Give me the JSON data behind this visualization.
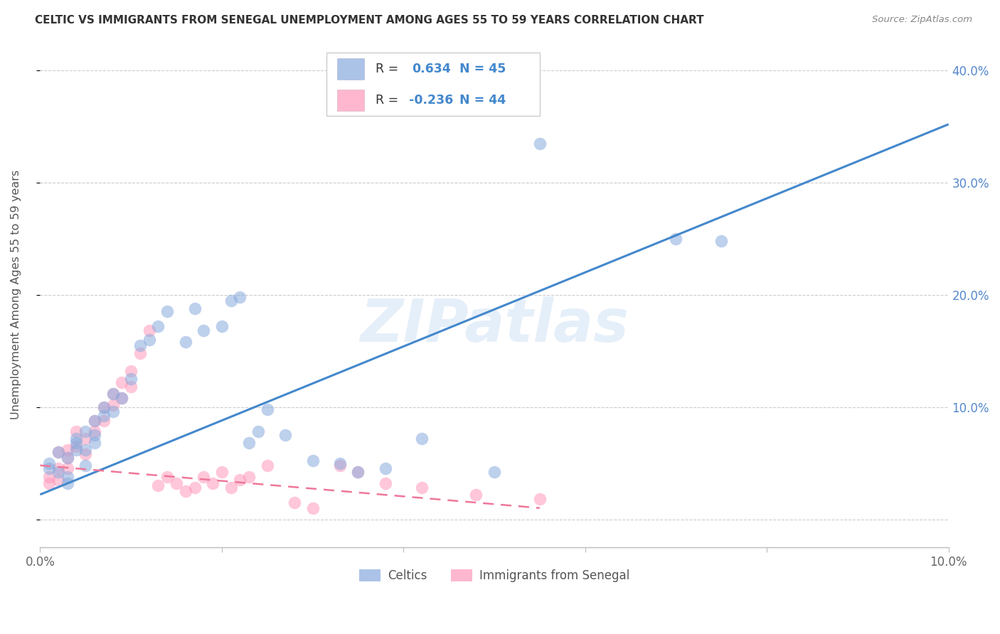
{
  "title": "CELTIC VS IMMIGRANTS FROM SENEGAL UNEMPLOYMENT AMONG AGES 55 TO 59 YEARS CORRELATION CHART",
  "source": "Source: ZipAtlas.com",
  "ylabel": "Unemployment Among Ages 55 to 59 years",
  "watermark": "ZIPatlas",
  "xlim": [
    0.0,
    0.1
  ],
  "ylim": [
    -0.025,
    0.425
  ],
  "yticks": [
    0.0,
    0.1,
    0.2,
    0.3,
    0.4
  ],
  "xticks": [
    0.0,
    0.02,
    0.04,
    0.06,
    0.08,
    0.1
  ],
  "xtick_labels": [
    "0.0%",
    "",
    "",
    "",
    "",
    "10.0%"
  ],
  "ytick_labels_right": [
    "",
    "10.0%",
    "20.0%",
    "30.0%",
    "40.0%"
  ],
  "legend_v1": "0.634",
  "legend_n1": "N = 45",
  "legend_v2": "-0.236",
  "legend_n2": "N = 44",
  "blue_color": "#88AADD",
  "pink_color": "#FF99BB",
  "line_blue": "#4488CC",
  "line_pink": "#EE7799",
  "title_color": "#333333",
  "tick_color_right": "#5588CC",
  "grid_color": "#CCCCCC",
  "celtics_x": [
    0.001,
    0.001,
    0.002,
    0.002,
    0.003,
    0.003,
    0.003,
    0.004,
    0.004,
    0.004,
    0.005,
    0.005,
    0.005,
    0.006,
    0.006,
    0.006,
    0.007,
    0.007,
    0.008,
    0.008,
    0.009,
    0.01,
    0.011,
    0.012,
    0.013,
    0.014,
    0.016,
    0.017,
    0.018,
    0.02,
    0.021,
    0.022,
    0.023,
    0.024,
    0.025,
    0.027,
    0.03,
    0.033,
    0.035,
    0.038,
    0.042,
    0.05,
    0.055,
    0.07,
    0.075
  ],
  "celtics_y": [
    0.05,
    0.045,
    0.06,
    0.042,
    0.055,
    0.038,
    0.032,
    0.062,
    0.072,
    0.068,
    0.078,
    0.062,
    0.048,
    0.088,
    0.075,
    0.068,
    0.1,
    0.092,
    0.112,
    0.096,
    0.108,
    0.125,
    0.155,
    0.16,
    0.172,
    0.185,
    0.158,
    0.188,
    0.168,
    0.172,
    0.195,
    0.198,
    0.068,
    0.078,
    0.098,
    0.075,
    0.052,
    0.05,
    0.042,
    0.045,
    0.072,
    0.042,
    0.335,
    0.25,
    0.248
  ],
  "senegal_x": [
    0.001,
    0.001,
    0.002,
    0.002,
    0.002,
    0.003,
    0.003,
    0.003,
    0.004,
    0.004,
    0.005,
    0.005,
    0.006,
    0.006,
    0.007,
    0.007,
    0.008,
    0.008,
    0.009,
    0.009,
    0.01,
    0.01,
    0.011,
    0.012,
    0.013,
    0.014,
    0.015,
    0.016,
    0.017,
    0.018,
    0.019,
    0.02,
    0.021,
    0.022,
    0.023,
    0.025,
    0.028,
    0.03,
    0.033,
    0.035,
    0.038,
    0.042,
    0.048,
    0.055
  ],
  "senegal_y": [
    0.038,
    0.032,
    0.06,
    0.045,
    0.035,
    0.062,
    0.055,
    0.045,
    0.078,
    0.065,
    0.072,
    0.058,
    0.088,
    0.078,
    0.1,
    0.088,
    0.112,
    0.102,
    0.122,
    0.108,
    0.132,
    0.118,
    0.148,
    0.168,
    0.03,
    0.038,
    0.032,
    0.025,
    0.028,
    0.038,
    0.032,
    0.042,
    0.028,
    0.035,
    0.038,
    0.048,
    0.015,
    0.01,
    0.048,
    0.042,
    0.032,
    0.028,
    0.022,
    0.018
  ],
  "blue_line_x": [
    0.0,
    0.1
  ],
  "blue_line_y": [
    0.022,
    0.352
  ],
  "pink_line_x": [
    0.0,
    0.055
  ],
  "pink_line_y": [
    0.048,
    0.01
  ]
}
